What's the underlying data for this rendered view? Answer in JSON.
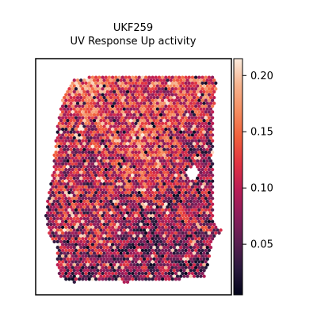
{
  "chart_data": {
    "type": "heatmap",
    "subtype": "spatial-transcriptomics-spot-plot",
    "title_line1": "UKF259",
    "title_line2": "UV Response Up activity",
    "colormap": "rocket",
    "colorbar": {
      "vmin": 0.005,
      "vmax": 0.215,
      "ticks": [
        0.05,
        0.1,
        0.15,
        0.2
      ],
      "tick_labels": [
        "0.05",
        "0.10",
        "0.15",
        "0.20"
      ],
      "placement": "right"
    },
    "axes": {
      "xticks": false,
      "yticks": false,
      "grid": false,
      "frame": true
    },
    "colors": {
      "cmap_stops": [
        "#03051a",
        "#2b1a3e",
        "#5b1e51",
        "#8b1d5b",
        "#b91d56",
        "#e13342",
        "#f0603c",
        "#f58d60",
        "#f6b48f",
        "#faebdd"
      ]
    }
  }
}
